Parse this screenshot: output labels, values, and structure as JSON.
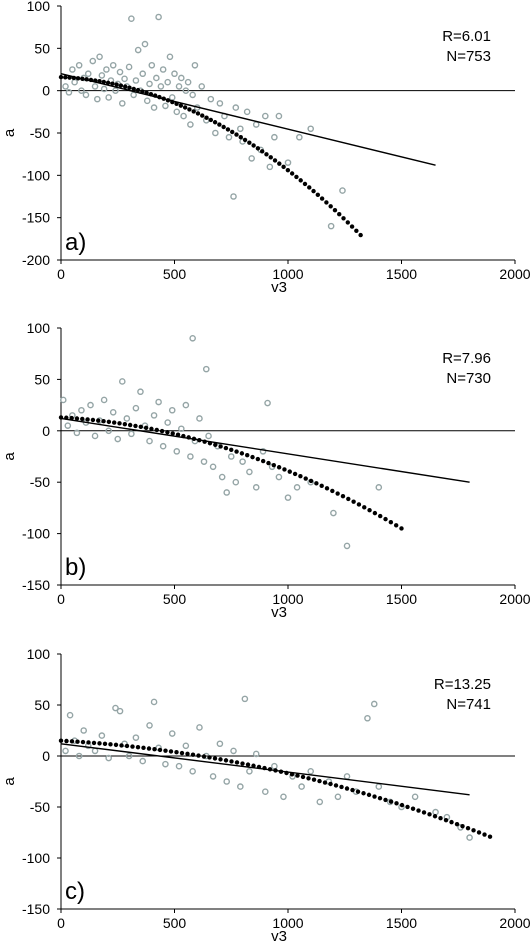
{
  "chart_data": [
    {
      "type": "scatter",
      "panel_label": "a)",
      "stats": [
        "R=6.01",
        "N=753"
      ],
      "xlabel": "v3",
      "ylabel": "a",
      "xlim": [
        0,
        2000
      ],
      "ylim": [
        -200,
        100
      ],
      "xticks": [
        0,
        500,
        1000,
        1500,
        2000
      ],
      "yticks": [
        -200,
        -150,
        -100,
        -50,
        0,
        50,
        100
      ],
      "grid": false,
      "zero_line": true,
      "scatter_color": "#95a5a6",
      "scatter_points": [
        [
          20,
          5
        ],
        [
          35,
          -2
        ],
        [
          50,
          25
        ],
        [
          60,
          10
        ],
        [
          80,
          30
        ],
        [
          90,
          0
        ],
        [
          100,
          15
        ],
        [
          110,
          -5
        ],
        [
          120,
          20
        ],
        [
          140,
          35
        ],
        [
          150,
          5
        ],
        [
          160,
          -10
        ],
        [
          170,
          40
        ],
        [
          180,
          18
        ],
        [
          190,
          2
        ],
        [
          200,
          25
        ],
        [
          210,
          -8
        ],
        [
          220,
          12
        ],
        [
          230,
          30
        ],
        [
          240,
          0
        ],
        [
          250,
          8
        ],
        [
          260,
          22
        ],
        [
          270,
          -15
        ],
        [
          280,
          14
        ],
        [
          290,
          5
        ],
        [
          300,
          28
        ],
        [
          310,
          85
        ],
        [
          320,
          -5
        ],
        [
          330,
          12
        ],
        [
          340,
          48
        ],
        [
          350,
          0
        ],
        [
          360,
          20
        ],
        [
          370,
          55
        ],
        [
          380,
          -12
        ],
        [
          390,
          8
        ],
        [
          400,
          30
        ],
        [
          410,
          -20
        ],
        [
          420,
          15
        ],
        [
          430,
          87
        ],
        [
          440,
          5
        ],
        [
          450,
          25
        ],
        [
          460,
          -18
        ],
        [
          470,
          10
        ],
        [
          480,
          40
        ],
        [
          490,
          -8
        ],
        [
          500,
          20
        ],
        [
          510,
          -25
        ],
        [
          520,
          5
        ],
        [
          530,
          15
        ],
        [
          540,
          -30
        ],
        [
          550,
          0
        ],
        [
          560,
          10
        ],
        [
          570,
          -40
        ],
        [
          580,
          -5
        ],
        [
          590,
          30
        ],
        [
          600,
          -20
        ],
        [
          620,
          5
        ],
        [
          640,
          -35
        ],
        [
          660,
          -10
        ],
        [
          680,
          -50
        ],
        [
          700,
          -15
        ],
        [
          720,
          -30
        ],
        [
          740,
          -55
        ],
        [
          760,
          -125
        ],
        [
          770,
          -20
        ],
        [
          790,
          -45
        ],
        [
          800,
          -60
        ],
        [
          820,
          -25
        ],
        [
          840,
          -80
        ],
        [
          860,
          -40
        ],
        [
          880,
          -70
        ],
        [
          900,
          -30
        ],
        [
          920,
          -90
        ],
        [
          940,
          -55
        ],
        [
          960,
          -30
        ],
        [
          1000,
          -85
        ],
        [
          1050,
          -55
        ],
        [
          1100,
          -45
        ],
        [
          1190,
          -160
        ],
        [
          1240,
          -118
        ]
      ],
      "fit_line": {
        "x": [
          0,
          1650
        ],
        "y": [
          20,
          -88
        ]
      },
      "poly_fit": {
        "x": [
          0,
          1320
        ],
        "y": [
          16,
          -170
        ],
        "b": -0.012,
        "c": -9.8e-05,
        "points": 70
      }
    },
    {
      "type": "scatter",
      "panel_label": "b)",
      "stats": [
        "R=7.96",
        "N=730"
      ],
      "xlabel": "v3",
      "ylabel": "a",
      "xlim": [
        0,
        2000
      ],
      "ylim": [
        -150,
        100
      ],
      "xticks": [
        0,
        500,
        1000,
        1500,
        2000
      ],
      "yticks": [
        -150,
        -100,
        -50,
        0,
        50,
        100
      ],
      "grid": false,
      "zero_line": true,
      "scatter_color": "#95a5a6",
      "scatter_points": [
        [
          10,
          30
        ],
        [
          30,
          5
        ],
        [
          50,
          15
        ],
        [
          70,
          -2
        ],
        [
          90,
          20
        ],
        [
          110,
          8
        ],
        [
          130,
          25
        ],
        [
          150,
          -5
        ],
        [
          170,
          10
        ],
        [
          190,
          30
        ],
        [
          210,
          0
        ],
        [
          230,
          18
        ],
        [
          250,
          -8
        ],
        [
          270,
          48
        ],
        [
          290,
          12
        ],
        [
          310,
          -3
        ],
        [
          330,
          22
        ],
        [
          350,
          38
        ],
        [
          370,
          5
        ],
        [
          390,
          -10
        ],
        [
          410,
          15
        ],
        [
          430,
          28
        ],
        [
          450,
          -15
        ],
        [
          470,
          8
        ],
        [
          490,
          20
        ],
        [
          510,
          -20
        ],
        [
          530,
          2
        ],
        [
          550,
          25
        ],
        [
          570,
          -25
        ],
        [
          580,
          90
        ],
        [
          590,
          -10
        ],
        [
          610,
          12
        ],
        [
          630,
          -30
        ],
        [
          640,
          60
        ],
        [
          650,
          -5
        ],
        [
          670,
          -35
        ],
        [
          690,
          -15
        ],
        [
          710,
          -45
        ],
        [
          730,
          -60
        ],
        [
          750,
          -25
        ],
        [
          770,
          -50
        ],
        [
          800,
          -30
        ],
        [
          830,
          -40
        ],
        [
          860,
          -55
        ],
        [
          890,
          -20
        ],
        [
          910,
          27
        ],
        [
          930,
          -35
        ],
        [
          960,
          -45
        ],
        [
          1000,
          -65
        ],
        [
          1040,
          -55
        ],
        [
          1100,
          -50
        ],
        [
          1200,
          -80
        ],
        [
          1260,
          -112
        ],
        [
          1400,
          -55
        ]
      ],
      "fit_line": {
        "x": [
          0,
          1800
        ],
        "y": [
          12,
          -50
        ]
      },
      "poly_fit": {
        "x": [
          0,
          1500
        ],
        "y": [
          13,
          -95
        ],
        "b": -0.012,
        "c": -4e-05,
        "points": 64
      }
    },
    {
      "type": "scatter",
      "panel_label": "c)",
      "stats": [
        "R=13.25",
        "N=741"
      ],
      "xlabel": "v3",
      "ylabel": "a",
      "xlim": [
        0,
        2000
      ],
      "ylim": [
        -150,
        100
      ],
      "xticks": [
        0,
        500,
        1000,
        1500,
        2000
      ],
      "yticks": [
        -150,
        -100,
        -50,
        0,
        50,
        100
      ],
      "grid": false,
      "zero_line": true,
      "scatter_color": "#95a5a6",
      "scatter_points": [
        [
          20,
          5
        ],
        [
          40,
          40
        ],
        [
          60,
          15
        ],
        [
          80,
          0
        ],
        [
          100,
          25
        ],
        [
          120,
          10
        ],
        [
          150,
          5
        ],
        [
          180,
          20
        ],
        [
          210,
          -2
        ],
        [
          240,
          47
        ],
        [
          260,
          44
        ],
        [
          280,
          12
        ],
        [
          300,
          0
        ],
        [
          330,
          18
        ],
        [
          360,
          -5
        ],
        [
          390,
          30
        ],
        [
          410,
          53
        ],
        [
          430,
          8
        ],
        [
          460,
          -8
        ],
        [
          490,
          22
        ],
        [
          520,
          -10
        ],
        [
          550,
          10
        ],
        [
          580,
          -15
        ],
        [
          610,
          28
        ],
        [
          640,
          0
        ],
        [
          670,
          -20
        ],
        [
          700,
          12
        ],
        [
          730,
          -25
        ],
        [
          760,
          5
        ],
        [
          790,
          -30
        ],
        [
          810,
          56
        ],
        [
          830,
          -15
        ],
        [
          860,
          2
        ],
        [
          900,
          -35
        ],
        [
          940,
          -10
        ],
        [
          980,
          -40
        ],
        [
          1020,
          -20
        ],
        [
          1060,
          -30
        ],
        [
          1100,
          -15
        ],
        [
          1140,
          -45
        ],
        [
          1180,
          -25
        ],
        [
          1220,
          -40
        ],
        [
          1260,
          -20
        ],
        [
          1300,
          -35
        ],
        [
          1350,
          37
        ],
        [
          1380,
          51
        ],
        [
          1400,
          -30
        ],
        [
          1450,
          -45
        ],
        [
          1500,
          -50
        ],
        [
          1560,
          -40
        ],
        [
          1650,
          -55
        ],
        [
          1700,
          -60
        ],
        [
          1760,
          -70
        ],
        [
          1800,
          -80
        ]
      ],
      "fit_line": {
        "x": [
          0,
          1800
        ],
        "y": [
          12,
          -38
        ]
      },
      "poly_fit": {
        "x": [
          0,
          1890
        ],
        "y": [
          15,
          -80
        ],
        "b": -0.012,
        "c": -2e-05,
        "points": 78
      }
    }
  ]
}
